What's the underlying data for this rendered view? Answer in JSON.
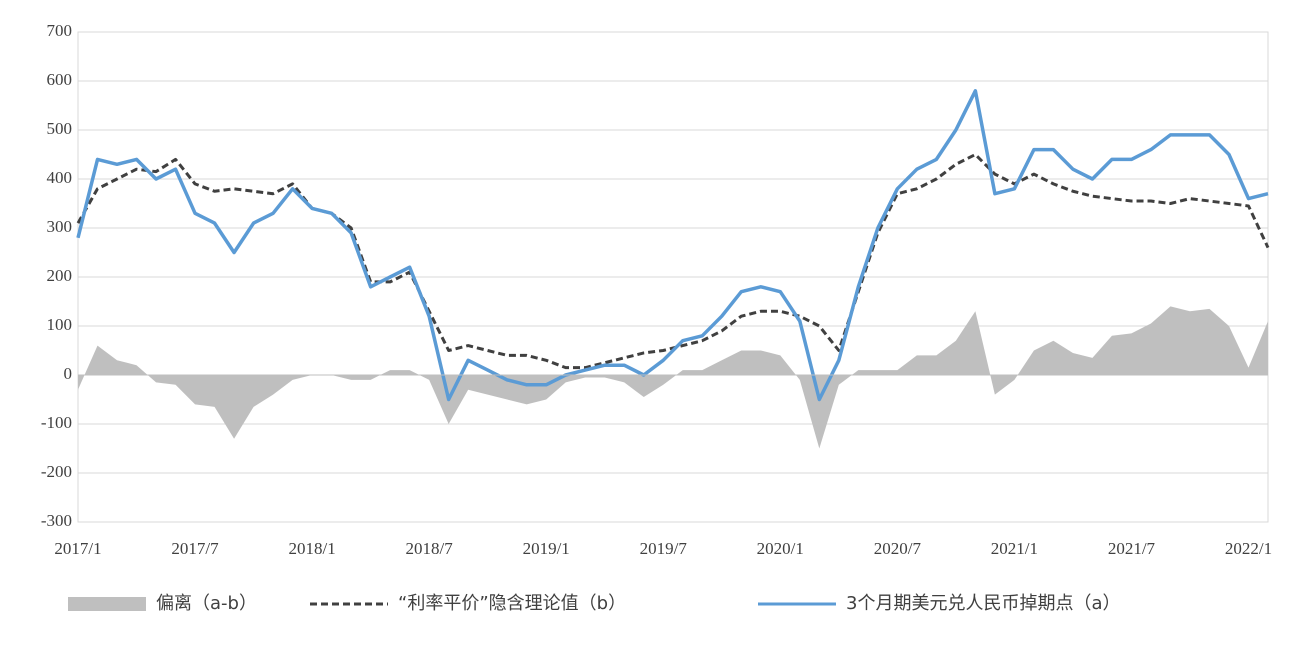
{
  "chart_data": {
    "type": "line",
    "categories": [
      "2017/1",
      null,
      null,
      null,
      null,
      null,
      "2017/7",
      null,
      null,
      null,
      null,
      null,
      "2018/1",
      null,
      null,
      null,
      null,
      null,
      "2018/7",
      null,
      null,
      null,
      null,
      null,
      "2019/1",
      null,
      null,
      null,
      null,
      null,
      "2019/7",
      null,
      null,
      null,
      null,
      null,
      "2020/1",
      null,
      null,
      null,
      null,
      null,
      "2020/7",
      null,
      null,
      null,
      null,
      null,
      "2021/1",
      null,
      null,
      null,
      null,
      null,
      "2021/7",
      null,
      null,
      null,
      null,
      null,
      "2022/1",
      null
    ],
    "series": [
      {
        "name": "偏离（a-b）",
        "color": "#bfbfbf",
        "style": "area",
        "values": [
          -30,
          60,
          30,
          20,
          -15,
          -20,
          -60,
          -65,
          -130,
          -65,
          -40,
          -10,
          0,
          0,
          -10,
          -10,
          10,
          10,
          -10,
          -100,
          -30,
          -40,
          -50,
          -60,
          -50,
          -15,
          -5,
          -5,
          -15,
          -45,
          -20,
          10,
          10,
          30,
          50,
          50,
          40,
          -10,
          -150,
          -20,
          10,
          10,
          10,
          40,
          40,
          70,
          130,
          -40,
          -10,
          50,
          70,
          45,
          35,
          80,
          85,
          105,
          140,
          130,
          135,
          100,
          15,
          110
        ]
      },
      {
        "name": "“利率平价”隐含理论值（b）",
        "color": "#404040",
        "style": "dashed",
        "values": [
          310,
          380,
          400,
          420,
          415,
          440,
          390,
          375,
          380,
          375,
          370,
          390,
          340,
          330,
          300,
          190,
          190,
          210,
          130,
          50,
          60,
          50,
          40,
          40,
          30,
          15,
          15,
          25,
          35,
          45,
          50,
          60,
          70,
          90,
          120,
          130,
          130,
          120,
          100,
          50,
          170,
          290,
          370,
          380,
          400,
          430,
          450,
          410,
          390,
          410,
          390,
          375,
          365,
          360,
          355,
          355,
          350,
          360,
          355,
          350,
          345,
          260
        ]
      },
      {
        "name": "3个月期美元兑人民币掉期点（a）",
        "color": "#5b9bd5",
        "style": "solid",
        "values": [
          280,
          440,
          430,
          440,
          400,
          420,
          330,
          310,
          250,
          310,
          330,
          380,
          340,
          330,
          290,
          180,
          200,
          220,
          120,
          -50,
          30,
          10,
          -10,
          -20,
          -20,
          0,
          10,
          20,
          20,
          0,
          30,
          70,
          80,
          120,
          170,
          180,
          170,
          110,
          -50,
          30,
          180,
          300,
          380,
          420,
          440,
          500,
          580,
          370,
          380,
          460,
          460,
          420,
          400,
          440,
          440,
          460,
          490,
          490,
          490,
          450,
          360,
          370
        ]
      }
    ],
    "ylim": [
      -300,
      700
    ],
    "yticks": [
      -300,
      -200,
      -100,
      0,
      100,
      200,
      300,
      400,
      500,
      600,
      700
    ],
    "grid": true
  }
}
